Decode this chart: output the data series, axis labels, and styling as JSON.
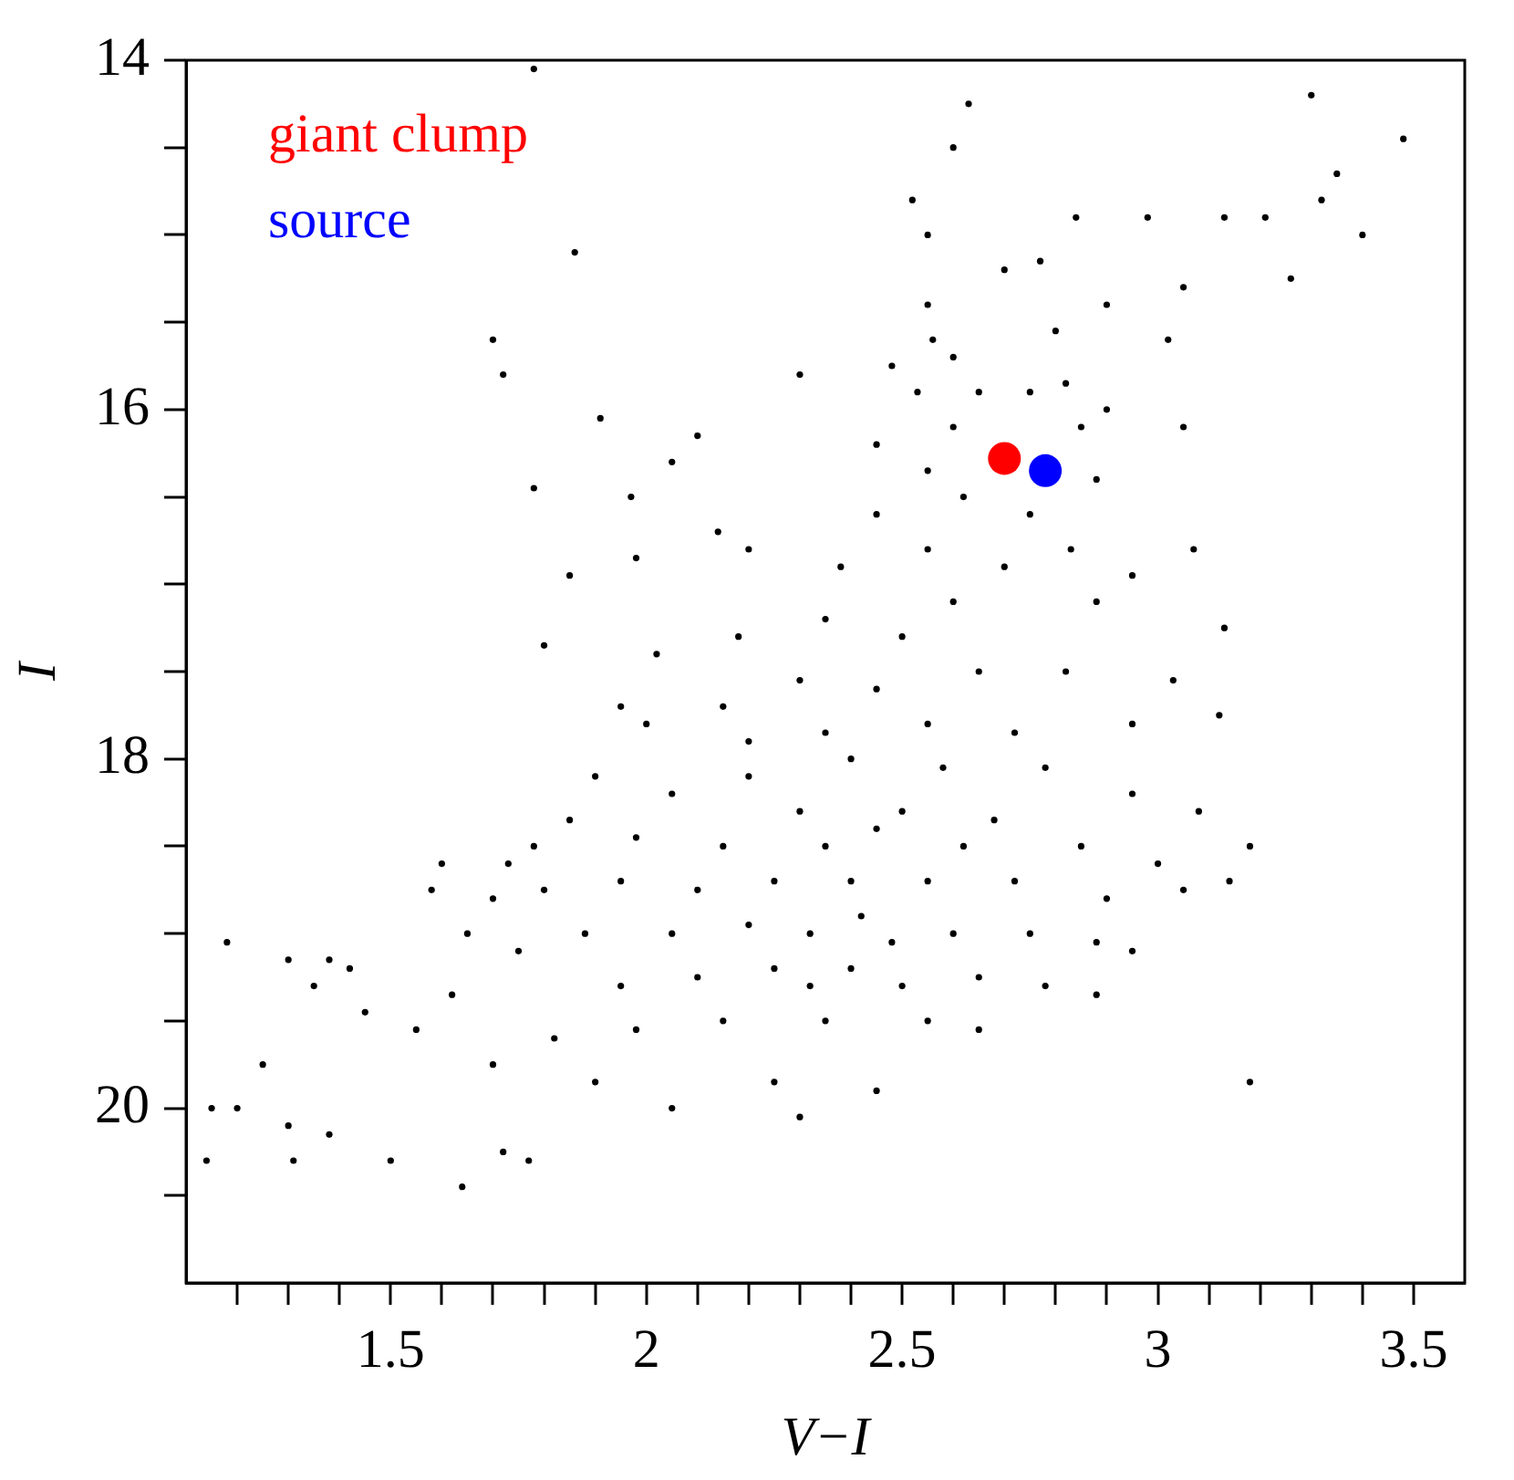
{
  "chart_data": {
    "type": "scatter",
    "xlabel": "V−I",
    "ylabel": "I",
    "xlim": [
      1.1,
      3.6
    ],
    "ylim": [
      21,
      14
    ],
    "xticks": [
      {
        "value": 1.2,
        "label": null
      },
      {
        "value": 1.3,
        "label": null
      },
      {
        "value": 1.4,
        "label": null
      },
      1.5,
      {
        "value": 1.6,
        "label": null
      },
      {
        "value": 1.7,
        "label": null
      },
      {
        "value": 1.8,
        "label": null
      },
      {
        "value": 1.9,
        "label": null
      },
      2,
      {
        "value": 2.1,
        "label": null
      },
      {
        "value": 2.2,
        "label": null
      },
      {
        "value": 2.3,
        "label": null
      },
      {
        "value": 2.4,
        "label": null
      },
      2.5,
      {
        "value": 2.6,
        "label": null
      },
      {
        "value": 2.7,
        "label": null
      },
      {
        "value": 2.8,
        "label": null
      },
      {
        "value": 2.9,
        "label": null
      },
      3,
      {
        "value": 3.1,
        "label": null
      },
      {
        "value": 3.2,
        "label": null
      },
      {
        "value": 3.3,
        "label": null
      },
      {
        "value": 3.4,
        "label": null
      },
      3.5
    ],
    "yticks": [
      14,
      {
        "value": 14.5,
        "label": null
      },
      {
        "value": 15,
        "label": null
      },
      {
        "value": 15.5,
        "label": null
      },
      16,
      {
        "value": 16.5,
        "label": null
      },
      {
        "value": 17,
        "label": null
      },
      {
        "value": 17.5,
        "label": null
      },
      18,
      {
        "value": 18.5,
        "label": null
      },
      {
        "value": 19,
        "label": null
      },
      {
        "value": 19.5,
        "label": null
      },
      20,
      {
        "value": 20.5,
        "label": null
      }
    ],
    "grid": false,
    "legend": "top left",
    "marker": "circle",
    "series": [
      {
        "color": "#000000",
        "x": [
          1.78,
          2.63,
          2.6,
          3.3,
          3.48,
          3.35,
          3.32,
          3.4,
          3.13,
          3.21,
          3.26,
          2.52,
          2.55,
          2.7,
          2.84,
          2.98,
          2.77,
          3.05,
          1.86,
          2.55,
          2.56,
          2.6,
          2.8,
          2.9,
          3.02,
          1.7,
          1.72,
          1.91,
          2.3,
          2.48,
          2.53,
          2.65,
          2.75,
          2.82,
          2.9,
          3.05,
          2.85,
          2.6,
          2.45,
          2.1,
          1.78,
          1.97,
          2.05,
          2.55,
          2.88,
          2.62,
          2.75,
          2.83,
          2.7,
          2.55,
          2.45,
          2.38,
          2.2,
          2.14,
          1.98,
          1.85,
          3.07,
          2.95,
          2.88,
          2.6,
          2.5,
          2.35,
          2.18,
          2.02,
          1.8,
          3.13,
          3.03,
          2.82,
          2.65,
          2.45,
          2.3,
          2.15,
          1.95,
          3.12,
          2.95,
          2.72,
          2.55,
          2.35,
          2.2,
          2.0,
          1.9,
          2.05,
          2.2,
          2.4,
          2.58,
          2.78,
          2.95,
          3.08,
          2.3,
          2.5,
          2.68,
          1.85,
          1.98,
          2.15,
          2.35,
          2.45,
          2.62,
          2.85,
          3.0,
          3.18,
          1.78,
          1.73,
          1.6,
          1.58,
          1.7,
          1.8,
          1.95,
          2.1,
          2.25,
          2.4,
          2.55,
          2.72,
          2.9,
          3.05,
          3.14,
          1.18,
          1.3,
          1.38,
          1.42,
          1.65,
          1.75,
          1.88,
          2.05,
          2.2,
          2.32,
          2.42,
          2.48,
          2.6,
          2.75,
          2.88,
          2.95,
          1.35,
          1.45,
          1.55,
          1.62,
          1.95,
          2.1,
          2.25,
          2.32,
          2.4,
          2.5,
          2.65,
          2.78,
          2.88,
          1.25,
          1.7,
          1.82,
          1.98,
          2.15,
          2.35,
          2.55,
          2.65,
          1.15,
          1.2,
          1.3,
          1.38,
          1.14,
          1.31,
          1.5,
          1.72,
          1.77,
          1.64,
          1.9,
          2.05,
          2.25,
          2.3,
          2.45,
          3.18
        ],
        "values": [
          14.05,
          14.25,
          14.5,
          14.2,
          14.45,
          14.65,
          14.8,
          15.0,
          14.9,
          14.9,
          15.25,
          14.8,
          15.0,
          15.2,
          14.9,
          14.9,
          15.15,
          15.3,
          15.1,
          15.4,
          15.6,
          15.7,
          15.55,
          15.4,
          15.6,
          15.6,
          15.8,
          16.05,
          15.8,
          15.75,
          15.9,
          15.9,
          15.9,
          15.85,
          16.0,
          16.1,
          16.1,
          16.1,
          16.2,
          16.15,
          16.45,
          16.5,
          16.3,
          16.35,
          16.4,
          16.5,
          16.6,
          16.8,
          16.9,
          16.8,
          16.6,
          16.9,
          16.8,
          16.7,
          16.85,
          16.95,
          16.8,
          16.95,
          17.1,
          17.1,
          17.3,
          17.2,
          17.3,
          17.4,
          17.35,
          17.25,
          17.55,
          17.5,
          17.5,
          17.6,
          17.55,
          17.7,
          17.7,
          17.75,
          17.8,
          17.85,
          17.8,
          17.85,
          17.9,
          17.8,
          18.1,
          18.2,
          18.1,
          18.0,
          18.05,
          18.05,
          18.2,
          18.3,
          18.3,
          18.3,
          18.35,
          18.35,
          18.45,
          18.5,
          18.5,
          18.4,
          18.5,
          18.5,
          18.6,
          18.5,
          18.5,
          18.6,
          18.6,
          18.75,
          18.8,
          18.75,
          18.7,
          18.75,
          18.7,
          18.7,
          18.7,
          18.7,
          18.8,
          18.75,
          18.7,
          19.05,
          19.15,
          19.15,
          19.2,
          19.0,
          19.1,
          19.0,
          19.0,
          18.95,
          19.0,
          18.9,
          19.05,
          19.0,
          19.0,
          19.05,
          19.1,
          19.3,
          19.45,
          19.55,
          19.35,
          19.3,
          19.25,
          19.2,
          19.3,
          19.2,
          19.3,
          19.25,
          19.3,
          19.35,
          19.75,
          19.75,
          19.6,
          19.55,
          19.5,
          19.5,
          19.5,
          19.55,
          20.0,
          20.0,
          20.1,
          20.15,
          20.3,
          20.3,
          20.3,
          20.25,
          20.3,
          20.45,
          19.85,
          20.0,
          19.85,
          20.05,
          19.9,
          19.85
        ]
      },
      {
        "name": "giant clump",
        "color": "#ff0000",
        "x": [
          2.7
        ],
        "values": [
          16.28
        ]
      },
      {
        "name": "source",
        "color": "#0000ff",
        "x": [
          2.78
        ],
        "values": [
          16.35
        ]
      }
    ]
  }
}
